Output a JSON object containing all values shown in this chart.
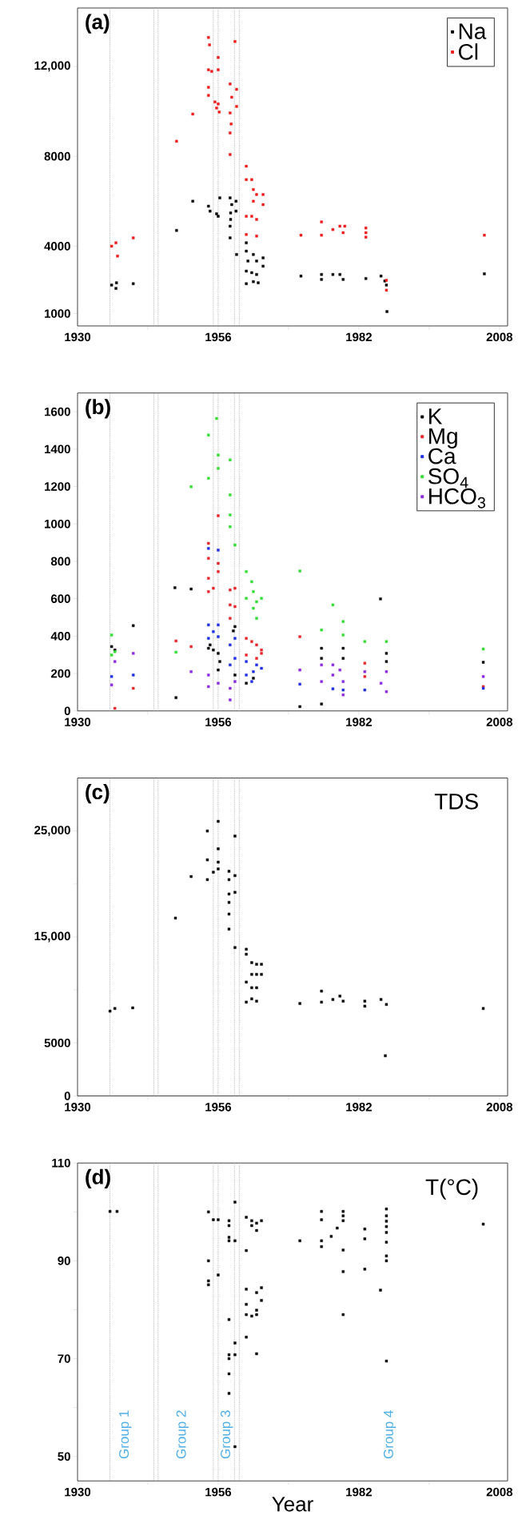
{
  "chart_data": [
    {
      "type": "scatter",
      "title": "(a)",
      "marker": "square",
      "legend": "top right",
      "xlim": [
        1930,
        2009.5
      ],
      "xticks": [
        1930,
        {
          "value": 1943,
          "label": null
        },
        1956,
        {
          "value": 1969,
          "label": null
        },
        1982,
        {
          "value": 1995,
          "label": null
        },
        2008
      ],
      "ylim": [
        450,
        14600
      ],
      "yticks": [
        1000,
        4000,
        8000,
        {
          "value": 12000,
          "label": "12,000"
        }
      ],
      "ref_lines": [
        {
          "axis": "x",
          "value": 1936.0,
          "color": "#999999",
          "line_style": "dotted"
        },
        {
          "axis": "x",
          "value": 1944.1,
          "color": "#999999",
          "line_style": "dotted"
        },
        {
          "axis": "x",
          "value": 1944.9,
          "color": "#999999",
          "line_style": "dotted"
        },
        {
          "axis": "x",
          "value": 1955.1,
          "color": "#999999",
          "line_style": "dotted"
        },
        {
          "axis": "x",
          "value": 1956.0,
          "color": "#999999",
          "line_style": "dotted"
        },
        {
          "axis": "x",
          "value": 1959.0,
          "color": "#999999",
          "line_style": "dotted"
        },
        {
          "axis": "x",
          "value": 1959.9,
          "color": "#999999",
          "line_style": "dotted"
        }
      ],
      "series": [
        {
          "name": "Na",
          "color": "#000000",
          "x": [
            1936.3,
            1937.2,
            1937.1,
            1940.3,
            1948.3,
            1951.3,
            1954.2,
            1954.5,
            1956.0,
            1956.3,
            1955.7,
            1958.2,
            1958.5,
            1958.3,
            1958.3,
            1958.2,
            1958.2,
            1959.3,
            1959.3,
            1959.4,
            1961.2,
            1961.2,
            1961.5,
            1962.5,
            1963.1,
            1964.3,
            1964.3,
            1961.2,
            1962.2,
            1963.1,
            1961.2,
            1962.5,
            1963.4,
            1971.3,
            1975.1,
            1975.1,
            1977.2,
            1978.5,
            1979.1,
            1983.3,
            1986.1,
            1986.8,
            1987.1,
            1987.2,
            2005.2
          ],
          "values": [
            2270,
            2370,
            2120,
            2330,
            4700,
            6000,
            5780,
            5560,
            5330,
            6150,
            5440,
            6150,
            5850,
            5480,
            5190,
            4890,
            4370,
            6000,
            5560,
            3630,
            4150,
            3780,
            3340,
            3630,
            3340,
            3480,
            3110,
            2890,
            2820,
            2740,
            2330,
            2420,
            2370,
            2670,
            2740,
            2520,
            2740,
            2740,
            2520,
            2560,
            2670,
            2450,
            2270,
            1090,
            2770
          ]
        },
        {
          "name": "Cl",
          "color": "#ee1c1c",
          "x": [
            1936.3,
            1937.1,
            1937.4,
            1940.3,
            1948.3,
            1951.3,
            1954.2,
            1954.4,
            1954.2,
            1954.8,
            1956.0,
            1956.0,
            1954.2,
            1954.2,
            1955.4,
            1956.0,
            1956.2,
            1955.7,
            1958.2,
            1958.5,
            1958.2,
            1958.4,
            1958.2,
            1958.2,
            1959.1,
            1959.4,
            1959.4,
            1961.2,
            1961.2,
            1962.2,
            1962.5,
            1963.1,
            1964.3,
            1964.3,
            1962.5,
            1961.2,
            1963.1,
            1962.2,
            1961.2,
            1963.1,
            1971.3,
            1975.1,
            1975.1,
            1977.2,
            1978.5,
            1979.1,
            1979.4,
            1983.3,
            1983.3,
            1983.3,
            1987.1,
            1987.1,
            2005.2
          ],
          "values": [
            4000,
            4150,
            3560,
            4370,
            8670,
            9880,
            13290,
            12960,
            11850,
            11780,
            12400,
            11850,
            11070,
            10710,
            10420,
            10330,
            9970,
            10150,
            11220,
            10630,
            9930,
            9440,
            9040,
            8080,
            13110,
            10980,
            10220,
            7560,
            6960,
            6960,
            6520,
            6300,
            6300,
            5850,
            6000,
            5330,
            5190,
            5330,
            4520,
            4450,
            4490,
            5080,
            4490,
            4740,
            4890,
            4600,
            4890,
            4810,
            4600,
            4400,
            2480,
            2040,
            4490
          ]
        }
      ]
    },
    {
      "type": "scatter",
      "title": "(b)",
      "marker": "square",
      "legend": "top right",
      "xlim": [
        1930,
        2009.5
      ],
      "xticks": [
        1930,
        {
          "value": 1943,
          "label": null
        },
        1956,
        {
          "value": 1969,
          "label": null
        },
        1982,
        {
          "value": 1995,
          "label": null
        },
        2008
      ],
      "ylim": [
        0,
        1700
      ],
      "yticks": [
        0,
        200,
        400,
        600,
        800,
        1000,
        1200,
        1400,
        1600
      ],
      "ref_lines": [
        {
          "axis": "x",
          "value": 1936.0,
          "color": "#999999",
          "line_style": "dotted"
        },
        {
          "axis": "x",
          "value": 1944.1,
          "color": "#999999",
          "line_style": "dotted"
        },
        {
          "axis": "x",
          "value": 1944.9,
          "color": "#999999",
          "line_style": "dotted"
        },
        {
          "axis": "x",
          "value": 1955.1,
          "color": "#999999",
          "line_style": "dotted"
        },
        {
          "axis": "x",
          "value": 1956.0,
          "color": "#999999",
          "line_style": "dotted"
        },
        {
          "axis": "x",
          "value": 1959.0,
          "color": "#999999",
          "line_style": "dotted"
        },
        {
          "axis": "x",
          "value": 1959.9,
          "color": "#999999",
          "line_style": "dotted"
        }
      ],
      "series": [
        {
          "name": "K",
          "color": "#000000",
          "x": [
            1936.3,
            1936.9,
            1940.3,
            1948.2,
            1948.0,
            1951.0,
            1954.2,
            1954.5,
            1956.0,
            1956.3,
            1956.0,
            1955.1,
            1959.1,
            1958.8,
            1959.1,
            1961.2,
            1962.5,
            1971.1,
            1975.1,
            1975.1,
            1975.1,
            1979.1,
            1979.1,
            1986.0,
            1987.1,
            1987.1,
            2005.0
          ],
          "values": [
            344,
            326,
            456,
            71,
            659,
            652,
            335,
            353,
            308,
            264,
            219,
            326,
            451,
            428,
            192,
            148,
            175,
            23,
            37,
            335,
            281,
            335,
            281,
            599,
            308,
            264,
            260
          ]
        },
        {
          "name": "Mg",
          "color": "#e8252a",
          "x": [
            1936.9,
            1940.3,
            1948.2,
            1951.0,
            1954.2,
            1954.2,
            1954.2,
            1954.2,
            1955.1,
            1956.0,
            1956.0,
            1956.0,
            1958.2,
            1958.2,
            1958.2,
            1959.1,
            1959.1,
            1961.2,
            1962.2,
            1963.1,
            1964.0,
            1961.2,
            1963.1,
            1964.0,
            1971.1,
            1983.1,
            1983.1,
            2005.0
          ],
          "values": [
            14,
            121,
            374,
            344,
            896,
            816,
            709,
            638,
            656,
            1044,
            789,
            745,
            647,
            567,
            495,
            656,
            558,
            388,
            371,
            353,
            326,
            299,
            281,
            308,
            397,
            255,
            184,
            130
          ]
        },
        {
          "name": "Ca",
          "color": "#1f2fe0",
          "x": [
            1936.3,
            1940.3,
            1954.2,
            1954.2,
            1954.2,
            1955.1,
            1956.0,
            1956.0,
            1956.0,
            1958.2,
            1958.2,
            1959.1,
            1959.1,
            1961.2,
            1961.2,
            1962.5,
            1963.1,
            1964.0,
            1962.2,
            1971.1,
            1977.2,
            1979.1,
            1983.1,
            2005.0
          ],
          "values": [
            184,
            192,
            869,
            460,
            388,
            424,
            860,
            460,
            397,
            353,
            246,
            388,
            281,
            264,
            192,
            210,
            246,
            228,
            157,
            143,
            118,
            112,
            112,
            121
          ]
        },
        {
          "name": "SO$_{4}$",
          "color": "#33dd33",
          "x": [
            1936.3,
            1936.3,
            1936.9,
            1948.2,
            1951.0,
            1954.2,
            1954.2,
            1955.7,
            1956.0,
            1956.0,
            1958.2,
            1958.2,
            1958.2,
            1958.2,
            1959.1,
            1961.2,
            1962.2,
            1962.5,
            1963.1,
            1964.0,
            1962.5,
            1961.2,
            1963.1,
            1971.1,
            1975.1,
            1977.2,
            1979.1,
            1979.1,
            1983.1,
            1987.1,
            2005.0
          ],
          "values": [
            406,
            299,
            317,
            314,
            1199,
            1475,
            1244,
            1564,
            1368,
            1297,
            1342,
            1155,
            1048,
            985,
            887,
            745,
            691,
            638,
            584,
            602,
            549,
            602,
            495,
            748,
            433,
            567,
            478,
            406,
            371,
            371,
            331
          ]
        },
        {
          "name": "HCO$_{3}$",
          "color": "#8a2be2",
          "x": [
            1936.3,
            1936.9,
            1940.3,
            1951.0,
            1954.2,
            1954.2,
            1956.0,
            1958.2,
            1958.2,
            1959.1,
            1971.1,
            1975.1,
            1975.1,
            1977.2,
            1977.2,
            1978.5,
            1979.1,
            1979.1,
            1983.1,
            1986.1,
            1987.1,
            1987.1,
            2005.0
          ],
          "values": [
            139,
            264,
            308,
            210,
            192,
            130,
            148,
            59,
            121,
            157,
            219,
            246,
            157,
            246,
            192,
            219,
            157,
            86,
            210,
            148,
            103,
            210,
            184
          ]
        }
      ]
    },
    {
      "type": "scatter",
      "title": "(c)",
      "marker": "square",
      "annotations": [
        "TDS"
      ],
      "xlim": [
        1930,
        2009.5
      ],
      "xticks": [
        1930,
        {
          "value": 1943,
          "label": null
        },
        1956,
        {
          "value": 1969,
          "label": null
        },
        1982,
        {
          "value": 1995,
          "label": null
        },
        2008
      ],
      "ylim": [
        0,
        30000
      ],
      "yticks": [
        0,
        5000,
        {
          "value": 10000,
          "label": null
        },
        {
          "value": 15000,
          "label": "15,000"
        },
        {
          "value": 20000,
          "label": null
        },
        {
          "value": 25000,
          "label": "25,000"
        }
      ],
      "ref_lines": [
        {
          "axis": "x",
          "value": 1936.0,
          "color": "#999999",
          "line_style": "dotted"
        },
        {
          "axis": "x",
          "value": 1944.1,
          "color": "#999999",
          "line_style": "dotted"
        },
        {
          "axis": "x",
          "value": 1944.9,
          "color": "#999999",
          "line_style": "dotted"
        },
        {
          "axis": "x",
          "value": 1955.1,
          "color": "#999999",
          "line_style": "dotted"
        },
        {
          "axis": "x",
          "value": 1956.0,
          "color": "#999999",
          "line_style": "dotted"
        },
        {
          "axis": "x",
          "value": 1959.0,
          "color": "#999999",
          "line_style": "dotted"
        },
        {
          "axis": "x",
          "value": 1959.9,
          "color": "#999999",
          "line_style": "dotted"
        }
      ],
      "series": [
        {
          "color": "#000000",
          "x": [
            1936.0,
            1936.9,
            1940.2,
            1948.1,
            1951.0,
            1954.0,
            1954.0,
            1954.0,
            1955.1,
            1956.0,
            1956.0,
            1956.0,
            1956.0,
            1958.0,
            1958.0,
            1958.0,
            1958.0,
            1958.0,
            1958.0,
            1959.1,
            1959.1,
            1959.1,
            1959.1,
            1961.2,
            1961.2,
            1962.2,
            1963.1,
            1964.0,
            1962.2,
            1963.1,
            1964.0,
            1961.2,
            1962.2,
            1963.1,
            1961.2,
            1962.2,
            1963.1,
            1971.1,
            1975.1,
            1975.1,
            1977.2,
            1978.5,
            1979.1,
            1983.1,
            1983.1,
            1986.1,
            1987.1,
            1986.9,
            2005.0
          ],
          "values": [
            8000,
            8250,
            8310,
            16780,
            20700,
            25000,
            22280,
            20410,
            21110,
            25910,
            23320,
            22060,
            21420,
            21200,
            20410,
            19050,
            18260,
            17160,
            15740,
            24520,
            20790,
            19210,
            14000,
            13840,
            13370,
            12580,
            12420,
            12420,
            11470,
            11470,
            11470,
            10740,
            10210,
            10210,
            8850,
            9160,
            8940,
            8720,
            9890,
            8850,
            9100,
            9420,
            8940,
            8940,
            8470,
            9100,
            8630,
            3790,
            8250
          ]
        }
      ]
    },
    {
      "type": "scatter",
      "title": "(d)",
      "marker": "square",
      "xlabel": "Year",
      "annotations": [
        "T(°C)",
        "Group 1",
        "Group 2",
        "Group 3",
        "Group 4"
      ],
      "xlim": [
        1930,
        2009.5
      ],
      "xticks": [
        1930,
        {
          "value": 1943,
          "label": null
        },
        1956,
        {
          "value": 1969,
          "label": null
        },
        1982,
        {
          "value": 1995,
          "label": null
        },
        2008
      ],
      "ylim": [
        45,
        110
      ],
      "yticks": [
        50,
        {
          "value": 60,
          "label": null
        },
        70,
        {
          "value": 80,
          "label": null
        },
        90,
        {
          "value": 100,
          "label": null
        },
        110
      ],
      "ref_lines": [
        {
          "axis": "x",
          "value": 1936.0,
          "color": "#999999",
          "line_style": "dotted"
        },
        {
          "axis": "x",
          "value": 1944.1,
          "color": "#999999",
          "line_style": "dotted"
        },
        {
          "axis": "x",
          "value": 1944.9,
          "color": "#999999",
          "line_style": "dotted"
        },
        {
          "axis": "x",
          "value": 1955.1,
          "color": "#999999",
          "line_style": "dotted"
        },
        {
          "axis": "x",
          "value": 1956.0,
          "color": "#999999",
          "line_style": "dotted"
        },
        {
          "axis": "x",
          "value": 1959.0,
          "color": "#999999",
          "line_style": "dotted"
        },
        {
          "axis": "x",
          "value": 1959.9,
          "color": "#999999",
          "line_style": "dotted"
        }
      ],
      "series": [
        {
          "color": "#000000",
          "x": [
            1936.0,
            1937.3,
            1954.2,
            1954.2,
            1954.2,
            1954.2,
            1955.1,
            1956.0,
            1956.0,
            1958.0,
            1958.0,
            1958.0,
            1958.0,
            1958.0,
            1958.0,
            1958.0,
            1958.0,
            1958.0,
            1959.1,
            1959.1,
            1959.1,
            1959.1,
            1959.1,
            1961.2,
            1961.2,
            1961.2,
            1961.2,
            1961.2,
            1961.2,
            1962.2,
            1962.2,
            1962.2,
            1963.1,
            1963.1,
            1963.1,
            1963.1,
            1963.1,
            1963.1,
            1964.0,
            1964.0,
            1964.0,
            1971.1,
            1975.1,
            1975.1,
            1975.1,
            1975.1,
            1976.9,
            1978.0,
            1979.1,
            1979.1,
            1979.1,
            1979.1,
            1979.1,
            1979.1,
            1983.1,
            1983.1,
            1983.1,
            1986.0,
            1987.1,
            1987.1,
            1987.1,
            1987.1,
            1987.1,
            1987.1,
            1987.1,
            1987.1,
            1987.1,
            2005.0
          ],
          "values": [
            100.1,
            100.1,
            100,
            90,
            85.9,
            85.1,
            98.4,
            98.4,
            87.1,
            98.2,
            97.2,
            94.8,
            94.1,
            78,
            70.8,
            70,
            66.9,
            62.9,
            102,
            94.1,
            73.2,
            70.8,
            52,
            98.9,
            92.1,
            84.2,
            81.1,
            79,
            74.4,
            98.2,
            97.2,
            78.7,
            97.7,
            96.2,
            83.5,
            79.9,
            79,
            71,
            98.2,
            84.5,
            81.9,
            94.1,
            100.1,
            98.4,
            94.1,
            92.9,
            95,
            96.7,
            100.1,
            99.2,
            98.2,
            92.2,
            87.8,
            79,
            96.5,
            94.5,
            88.3,
            84,
            100.6,
            99.2,
            98.1,
            97,
            95.8,
            93.8,
            91,
            90,
            69.5,
            97.5
          ]
        }
      ]
    }
  ]
}
